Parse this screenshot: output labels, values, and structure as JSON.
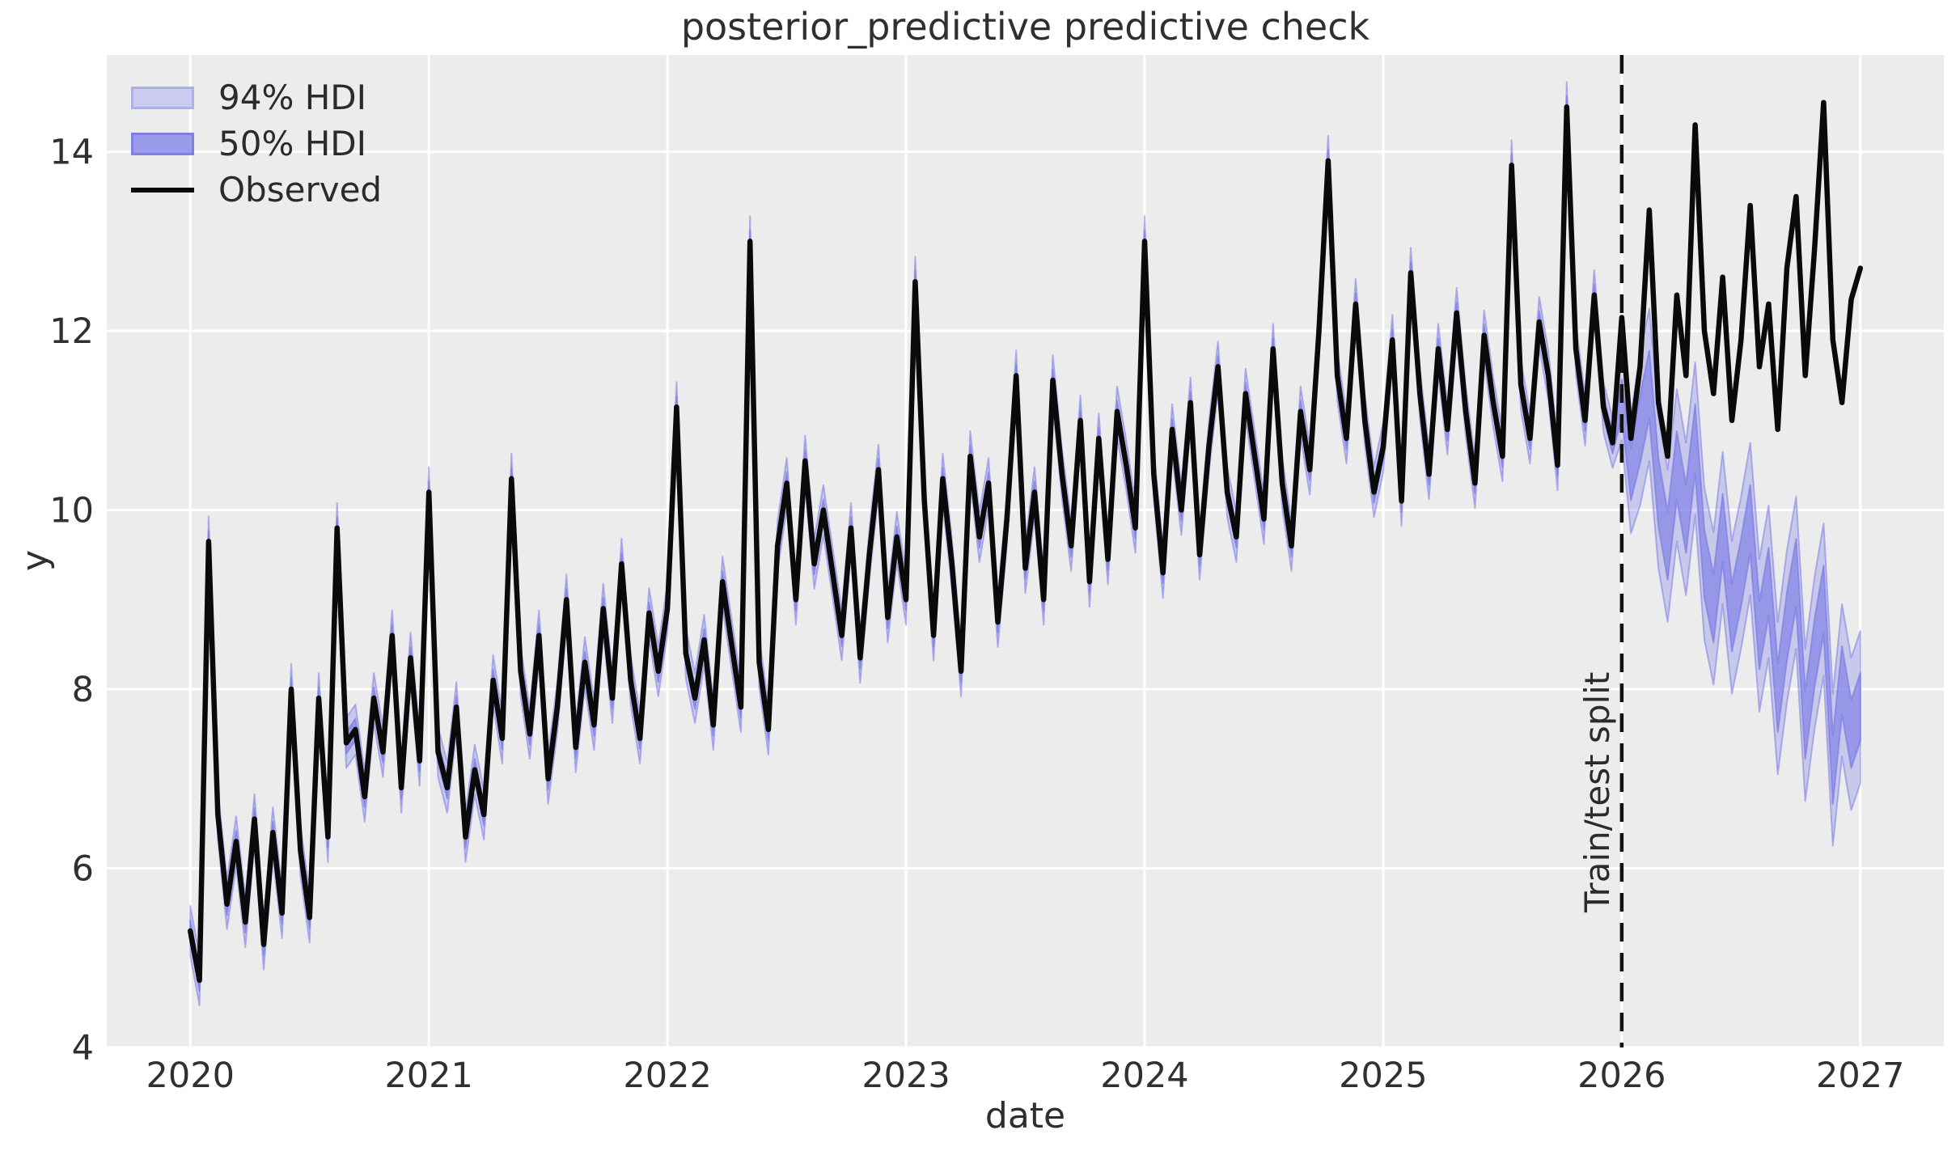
{
  "chart_data": {
    "type": "line",
    "title": "posterior_predictive predictive check",
    "xlabel": "date",
    "ylabel": "y",
    "xlim": [
      2019.65,
      2027.35
    ],
    "ylim": [
      4.0,
      15.08
    ],
    "x_ticks": [
      2020,
      2021,
      2022,
      2023,
      2024,
      2025,
      2026,
      2027
    ],
    "y_ticks": [
      4,
      6,
      8,
      10,
      12,
      14
    ],
    "grid": true,
    "plot_background": "#ececec",
    "gridline_color": "#ffffff",
    "observed_color": "#0a0a0a",
    "hdi_base_color": "#7c7ce6",
    "hdi94_fill_opacity": 0.32,
    "hdi50_fill_opacity": 0.65,
    "legend": {
      "position": "upper left",
      "entries": [
        {
          "label": "94% HDI",
          "type": "patch",
          "color": "#cbcbf1"
        },
        {
          "label": "50% HDI",
          "type": "patch",
          "color": "#9b9bec"
        },
        {
          "label": "Observed",
          "type": "line",
          "color": "#0a0a0a"
        }
      ]
    },
    "annotations": {
      "split_label": "Train/test split",
      "split_x": 2026.0,
      "split_line_style": "dashed",
      "split_line_color": "#111111"
    },
    "series": {
      "x_start": 2020.0,
      "x_step": 0.038462,
      "n": 183,
      "train_end_index": 156,
      "observed": [
        5.3,
        4.75,
        9.65,
        6.6,
        5.6,
        6.3,
        5.4,
        6.55,
        5.15,
        6.4,
        5.5,
        8.0,
        6.2,
        5.45,
        7.9,
        6.35,
        9.8,
        7.4,
        7.55,
        6.8,
        7.9,
        7.3,
        8.6,
        6.9,
        8.35,
        7.2,
        10.2,
        7.3,
        6.9,
        7.8,
        6.35,
        7.1,
        6.6,
        8.1,
        7.45,
        10.35,
        8.2,
        7.5,
        8.6,
        7.0,
        7.8,
        9.0,
        7.35,
        8.3,
        7.6,
        8.9,
        7.9,
        9.4,
        8.1,
        7.45,
        8.85,
        8.2,
        8.9,
        11.15,
        8.4,
        7.9,
        8.55,
        7.6,
        9.2,
        8.5,
        7.8,
        13.0,
        8.3,
        7.55,
        9.6,
        10.3,
        9.0,
        10.55,
        9.4,
        10.0,
        9.3,
        8.6,
        9.8,
        8.35,
        9.5,
        10.45,
        8.8,
        9.7,
        9.0,
        12.55,
        10.1,
        8.6,
        10.35,
        9.4,
        8.2,
        10.6,
        9.7,
        10.3,
        8.75,
        9.9,
        11.5,
        9.35,
        10.2,
        9.0,
        11.45,
        10.4,
        9.6,
        11.0,
        9.2,
        10.8,
        9.45,
        11.1,
        10.5,
        9.8,
        13.0,
        10.4,
        9.3,
        10.9,
        10.0,
        11.2,
        9.5,
        10.7,
        11.6,
        10.2,
        9.7,
        11.3,
        10.6,
        9.9,
        11.8,
        10.3,
        9.6,
        11.1,
        10.45,
        12.0,
        13.9,
        11.5,
        10.8,
        12.3,
        11.0,
        10.2,
        10.7,
        11.9,
        10.1,
        12.65,
        11.3,
        10.4,
        11.8,
        10.9,
        12.2,
        11.1,
        10.3,
        11.95,
        11.2,
        10.6,
        13.85,
        11.4,
        10.8,
        12.1,
        11.5,
        10.5,
        14.5,
        11.8,
        11.0,
        12.4,
        11.15,
        10.75,
        12.15,
        10.8,
        11.6,
        13.35,
        11.2,
        10.6,
        12.4,
        11.5,
        14.3,
        12.0,
        11.3,
        12.6,
        11.0,
        11.9,
        13.4,
        11.6,
        12.3,
        10.9,
        12.7,
        13.5,
        11.5,
        12.9,
        14.55,
        11.9,
        11.2,
        12.35,
        12.7
      ],
      "hdi_center_note": "During training (indices 0-155) the HDI bands are centered on the observed values; after the split they follow the forecast below.",
      "hdi_center_test": [
        11.25,
        10.4,
        10.9,
        11.4,
        10.2,
        9.6,
        10.5,
        9.9,
        10.8,
        9.4,
        8.9,
        9.8,
        8.8,
        9.3,
        9.9,
        8.6,
        9.2,
        7.9,
        8.7,
        9.3,
        7.6,
        8.4,
        9.0,
        7.1,
        8.1,
        7.5,
        7.8
      ],
      "hdi94_halfwidth": {
        "train": 0.28,
        "test": 0.85
      },
      "hdi50_halfwidth": {
        "train": 0.12,
        "test": 0.38
      }
    }
  }
}
